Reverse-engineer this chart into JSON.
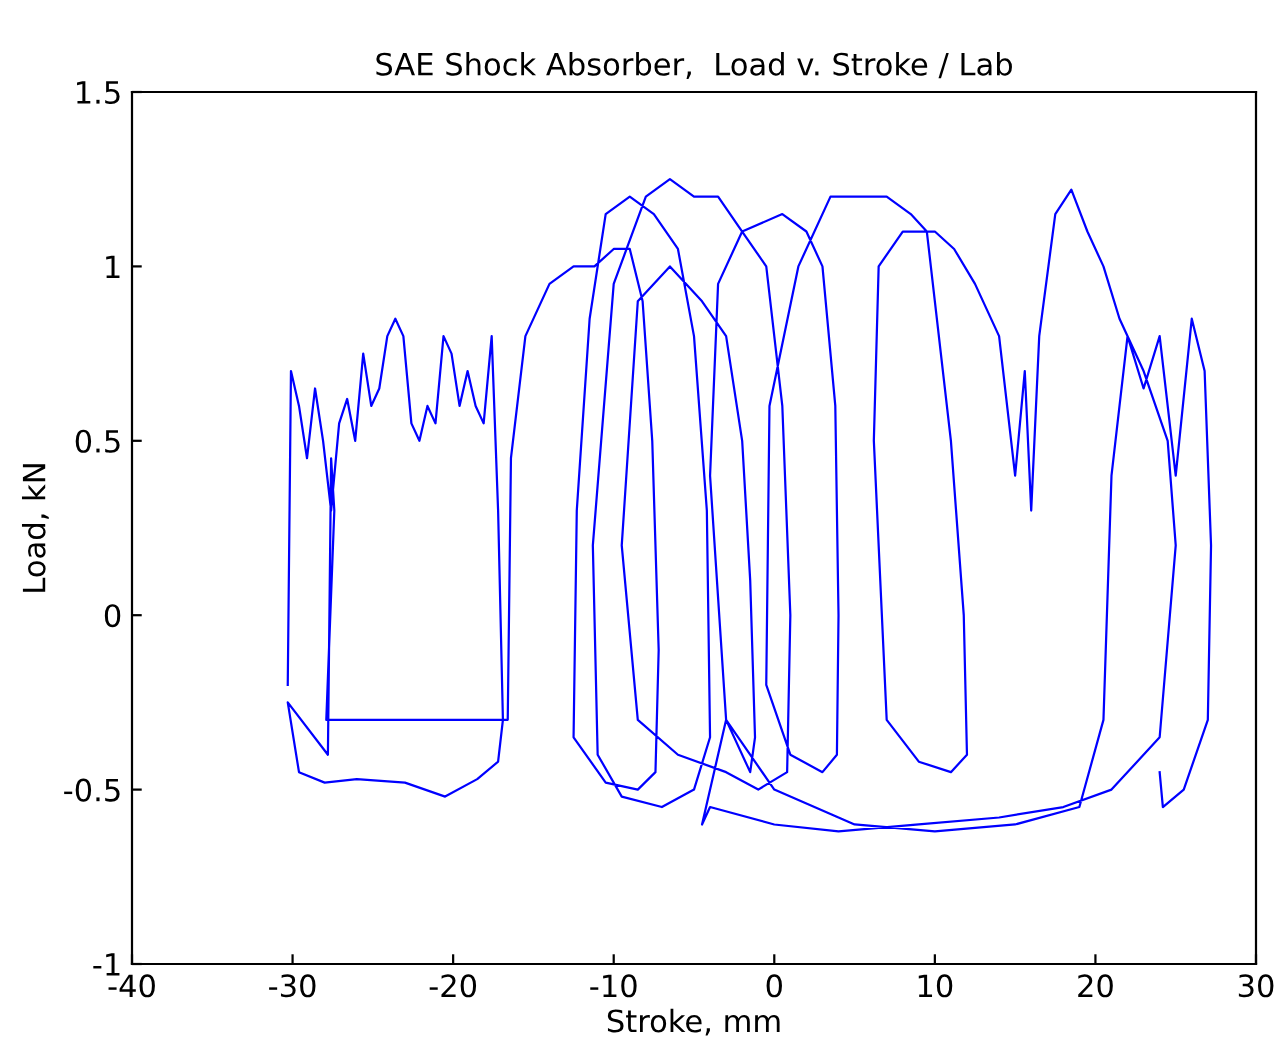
{
  "chart_data": {
    "type": "line",
    "title": "SAE Shock Absorber,  Load v. Stroke / Lab",
    "xlabel": "Stroke, mm",
    "ylabel": "Load, kN",
    "xlim": [
      -40,
      30
    ],
    "ylim": [
      -1,
      1.5
    ],
    "xticks": [
      -40,
      -30,
      -20,
      -10,
      0,
      10,
      20,
      30
    ],
    "yticks": [
      -1,
      -0.5,
      0,
      0.5,
      1,
      1.5
    ],
    "grid": false,
    "marker": "none",
    "line_style": "solid",
    "series": [
      {
        "color": "#0000ff",
        "x": [
          -30.3,
          -30.1,
          -29.6,
          -29.1,
          -28.6,
          -28.1,
          -27.6,
          -27.1,
          -26.6,
          -26.1,
          -25.6,
          -25.1,
          -24.6,
          -24.1,
          -23.6,
          -23.1,
          -22.6,
          -22.1,
          -21.6,
          -21.1,
          -20.6,
          -20.1,
          -19.6,
          -19.1,
          -18.6,
          -18.1,
          -17.6,
          -17.2,
          -16.9,
          -17.2,
          -18.5,
          -20.5,
          -23.0,
          -26.0,
          -28.0,
          -29.6,
          -30.3,
          -27.8,
          -27.6,
          -27.4,
          -27.9,
          -16.6,
          -16.4,
          -15.5,
          -14.0,
          -12.5,
          -11.2,
          -10.0,
          -9.0,
          -8.2,
          -7.6,
          -7.2,
          -7.4,
          -8.5,
          -10.5,
          -12.5,
          -12.3,
          -11.5,
          -10.5,
          -9.0,
          -7.5,
          -6.0,
          -5.0,
          -4.2,
          -4.0,
          -5.0,
          -7.0,
          -9.5,
          -11.0,
          -11.3,
          -10.0,
          -8.0,
          -6.5,
          -5.0,
          -3.5,
          -2.0,
          -0.5,
          0.5,
          1.0,
          0.8,
          -1.0,
          -3.0,
          -6.0,
          -8.5,
          -9.5,
          -8.5,
          -6.5,
          -4.5,
          -3.0,
          -2.0,
          -1.5,
          -1.2,
          -1.5,
          -3.0,
          -4.0,
          -3.5,
          -2.0,
          0.5,
          2.0,
          3.0,
          3.8,
          4.0,
          3.9,
          3.0,
          1.0,
          -0.5,
          -0.3,
          1.5,
          3.5,
          5.0,
          7.0,
          8.5,
          9.5,
          10.0,
          11.0,
          11.8,
          12.0,
          11.0,
          9.0,
          7.0,
          6.2,
          6.5,
          8.0,
          10.0,
          11.2,
          12.5,
          14.0,
          15.0,
          15.6,
          16.0,
          16.5,
          17.5,
          18.5,
          19.5,
          20.5,
          21.5,
          23.0,
          24.5,
          25.0,
          24.0,
          21.0,
          18.0,
          14.0,
          9.0,
          4.0,
          0.0,
          -4.0,
          -4.5,
          -3.0,
          0.0,
          5.0,
          10.0,
          15.0,
          19.0,
          20.5,
          21.0,
          22.0,
          23.0,
          24.0,
          25.0,
          26.0,
          26.8,
          27.2,
          27.0,
          25.5,
          24.2,
          24.0
        ],
        "values": [
          -0.2,
          0.7,
          0.6,
          0.45,
          0.65,
          0.5,
          0.3,
          0.55,
          0.62,
          0.5,
          0.75,
          0.6,
          0.65,
          0.8,
          0.85,
          0.8,
          0.55,
          0.5,
          0.6,
          0.55,
          0.8,
          0.75,
          0.6,
          0.7,
          0.6,
          0.55,
          0.8,
          0.3,
          -0.3,
          -0.42,
          -0.47,
          -0.52,
          -0.48,
          -0.47,
          -0.48,
          -0.45,
          -0.25,
          -0.4,
          0.45,
          0.3,
          -0.3,
          -0.3,
          0.45,
          0.8,
          0.95,
          1.0,
          1.0,
          1.05,
          1.05,
          0.9,
          0.5,
          -0.1,
          -0.45,
          -0.5,
          -0.48,
          -0.35,
          0.3,
          0.85,
          1.15,
          1.2,
          1.15,
          1.05,
          0.8,
          0.3,
          -0.35,
          -0.5,
          -0.55,
          -0.52,
          -0.4,
          0.2,
          0.95,
          1.2,
          1.25,
          1.2,
          1.2,
          1.1,
          1.0,
          0.6,
          0.0,
          -0.45,
          -0.5,
          -0.45,
          -0.4,
          -0.3,
          0.2,
          0.9,
          1.0,
          0.9,
          0.8,
          0.5,
          0.1,
          -0.35,
          -0.45,
          -0.3,
          0.4,
          0.95,
          1.1,
          1.15,
          1.1,
          1.0,
          0.6,
          0.0,
          -0.4,
          -0.45,
          -0.4,
          -0.2,
          0.6,
          1.0,
          1.2,
          1.2,
          1.2,
          1.15,
          1.1,
          0.9,
          0.5,
          0.0,
          -0.4,
          -0.45,
          -0.42,
          -0.3,
          0.5,
          1.0,
          1.1,
          1.1,
          1.05,
          0.95,
          0.8,
          0.4,
          0.7,
          0.3,
          0.8,
          1.15,
          1.22,
          1.1,
          1.0,
          0.85,
          0.7,
          0.5,
          0.2,
          -0.35,
          -0.5,
          -0.55,
          -0.58,
          -0.6,
          -0.62,
          -0.6,
          -0.55,
          -0.6,
          -0.3,
          -0.5,
          -0.6,
          -0.62,
          -0.6,
          -0.55,
          -0.3,
          0.4,
          0.8,
          0.65,
          0.8,
          0.4,
          0.85,
          0.7,
          0.2,
          -0.3,
          -0.5,
          -0.55,
          -0.45
        ]
      }
    ]
  }
}
